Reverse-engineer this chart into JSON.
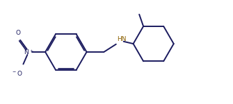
{
  "background": "#ffffff",
  "bond_color": "#1a1a5e",
  "bond_lw": 1.4,
  "hn_color": "#8B6000",
  "figsize": [
    3.35,
    1.5
  ],
  "dpi": 100,
  "xlim": [
    0,
    10
  ],
  "ylim": [
    0,
    4.5
  ]
}
